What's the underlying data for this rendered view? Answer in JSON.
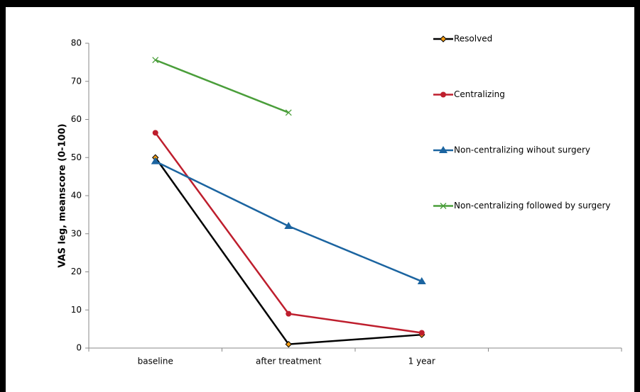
{
  "chart_data": {
    "type": "line",
    "y_label": "VAS leg, meanscore (0-100)",
    "categories": [
      "baseline",
      "after treatment",
      "1 year",
      null
    ],
    "series": [
      {
        "name": "Resolved",
        "color": "#000000",
        "marker": "diamond",
        "values": [
          50,
          1,
          3.5,
          null
        ]
      },
      {
        "name": "Centralizing",
        "color": "#be1e2d",
        "marker": "circle",
        "values": [
          56.5,
          9,
          4,
          null
        ]
      },
      {
        "name": "Non-centralizing wihout surgery",
        "color": "#1b64a0",
        "marker": "triangle",
        "values": [
          49,
          32,
          17.5,
          null
        ]
      },
      {
        "name": "Non-centralizing followed by surgery",
        "color": "#4a9e3a",
        "marker": "x",
        "values": [
          75.6,
          61.8,
          null,
          null
        ]
      }
    ],
    "ylim": [
      0,
      80
    ],
    "yticks": [
      0,
      10,
      20,
      30,
      40,
      50,
      60,
      70,
      80
    ],
    "legend": "right"
  }
}
